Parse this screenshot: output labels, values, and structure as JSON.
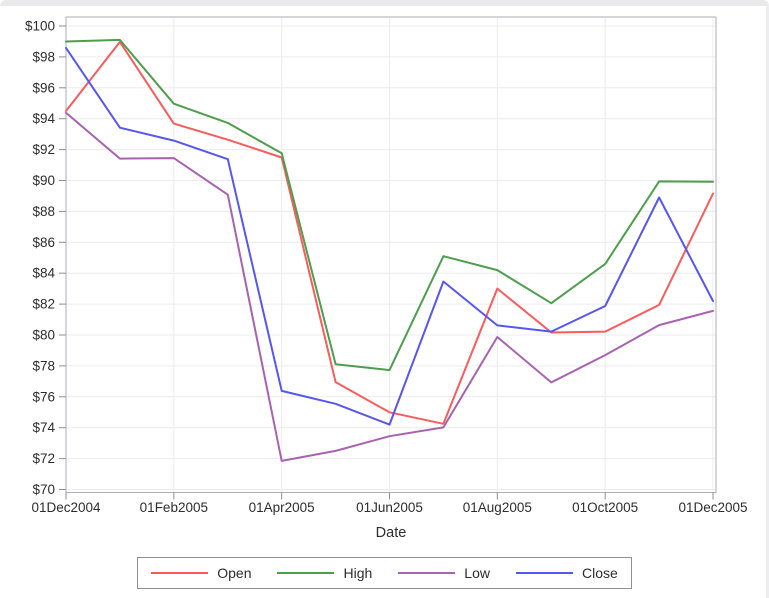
{
  "window": {
    "background": "#ffffff",
    "top_band_color": "#e9e9ec"
  },
  "chart_data": {
    "type": "line",
    "title": "",
    "xlabel": "Date",
    "ylabel": "",
    "grid": true,
    "legend_position": "bottom",
    "x_categories": [
      "01Dec2004",
      "01Jan2005",
      "01Feb2005",
      "01Mar2005",
      "01Apr2005",
      "01May2005",
      "01Jun2005",
      "01Jul2005",
      "01Aug2005",
      "01Sep2005",
      "01Oct2005",
      "01Nov2005",
      "01Dec2005"
    ],
    "x_tick_labels": [
      "01Dec2004",
      "01Feb2005",
      "01Apr2005",
      "01Jun2005",
      "01Aug2005",
      "01Oct2005",
      "01Dec2005"
    ],
    "x_tick_indices": [
      0,
      2,
      4,
      6,
      8,
      10,
      12
    ],
    "y_tick_prefix": "$",
    "y_tick_values": [
      70,
      72,
      74,
      76,
      78,
      80,
      82,
      84,
      86,
      88,
      90,
      92,
      94,
      96,
      98,
      100
    ],
    "ylim": [
      70,
      100
    ],
    "series": [
      {
        "name": "Open",
        "color": "#f85c5c",
        "values": [
          94.5,
          98.97,
          93.68,
          92.64,
          91.49,
          76.95,
          75.0,
          74.25,
          83.0,
          80.16,
          80.22,
          81.95,
          89.15
        ]
      },
      {
        "name": "High",
        "color": "#4d9e4d",
        "values": [
          99.0,
          99.1,
          94.97,
          93.73,
          91.76,
          78.11,
          77.73,
          85.1,
          84.2,
          82.06,
          84.6,
          89.94,
          89.92
        ]
      },
      {
        "name": "Low",
        "color": "#a763af",
        "values": [
          94.38,
          91.42,
          91.45,
          89.08,
          71.85,
          72.5,
          73.45,
          74.02,
          79.87,
          76.93,
          78.7,
          80.64,
          81.56
        ]
      },
      {
        "name": "Close",
        "color": "#5656f0",
        "values": [
          98.58,
          93.42,
          92.58,
          91.38,
          76.38,
          75.55,
          74.2,
          83.46,
          80.62,
          80.22,
          81.88,
          88.9,
          82.2
        ]
      }
    ],
    "style": {
      "grid_color": "#ececec",
      "frame_color": "#aeaeb4",
      "tick_color": "#8e8e94",
      "text_color": "#2d2d2d"
    }
  }
}
